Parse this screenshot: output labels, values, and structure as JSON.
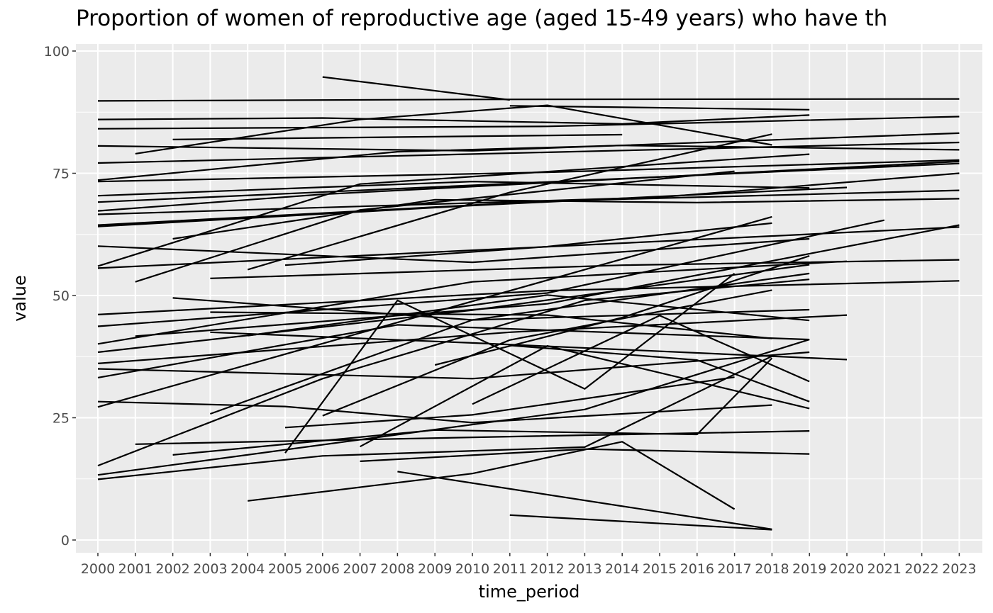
{
  "chart_data": {
    "type": "line",
    "title": "Proportion of women of reproductive age (aged 15-49 years) who have th",
    "xlabel": "time_period",
    "ylabel": "value",
    "xlim": [
      2000,
      2023
    ],
    "ylim": [
      0,
      100
    ],
    "x_ticks": [
      "2000",
      "2001",
      "2002",
      "2003",
      "2004",
      "2005",
      "2006",
      "2007",
      "2008",
      "2009",
      "2010",
      "2011",
      "2012",
      "2013",
      "2014",
      "2015",
      "2016",
      "2017",
      "2018",
      "2019",
      "2020",
      "2021",
      "2022",
      "2023"
    ],
    "y_ticks": [
      "0",
      "25",
      "50",
      "75",
      "100"
    ],
    "grid": true,
    "background": "#ebebeb",
    "line_color": "#000000",
    "series": [
      {
        "x": [
          2000,
          2010,
          2023
        ],
        "y": [
          89.8,
          90.1,
          90.2
        ]
      },
      {
        "x": [
          2000,
          2006,
          2014,
          2019
        ],
        "y": [
          86.0,
          86.3,
          85.1,
          86.9
        ]
      },
      {
        "x": [
          2006,
          2011
        ],
        "y": [
          94.7,
          90.0
        ]
      },
      {
        "x": [
          2011,
          2019
        ],
        "y": [
          88.8,
          88.0
        ]
      },
      {
        "x": [
          2000,
          2012,
          2023
        ],
        "y": [
          84.1,
          84.6,
          86.6
        ]
      },
      {
        "x": [
          2002,
          2014
        ],
        "y": [
          81.9,
          82.9
        ]
      },
      {
        "x": [
          2000,
          2010,
          2023
        ],
        "y": [
          80.6,
          79.6,
          83.2
        ]
      },
      {
        "x": [
          2001,
          2007,
          2012,
          2018
        ],
        "y": [
          79.0,
          86.0,
          88.9,
          80.8
        ]
      },
      {
        "x": [
          2000,
          2023
        ],
        "y": [
          77.1,
          81.3
        ]
      },
      {
        "x": [
          2000,
          2008,
          2014,
          2023
        ],
        "y": [
          73.6,
          79.4,
          80.7,
          79.8
        ]
      },
      {
        "x": [
          2000,
          2012,
          2023
        ],
        "y": [
          73.3,
          75.2,
          77.7
        ]
      },
      {
        "x": [
          2000,
          2010,
          2019
        ],
        "y": [
          70.4,
          73.3,
          72.0
        ]
      },
      {
        "x": [
          2000,
          2023
        ],
        "y": [
          69.1,
          77.0
        ]
      },
      {
        "x": [
          2000,
          2006,
          2023
        ],
        "y": [
          67.3,
          70.7,
          77.4
        ]
      },
      {
        "x": [
          2000,
          2015,
          2023
        ],
        "y": [
          66.6,
          70.1,
          75.0
        ]
      },
      {
        "x": [
          2000,
          2010,
          2020
        ],
        "y": [
          64.1,
          68.4,
          72.1
        ]
      },
      {
        "x": [
          2000,
          2012,
          2023
        ],
        "y": [
          64.4,
          69.3,
          71.5
        ]
      },
      {
        "x": [
          2002,
          2009,
          2016,
          2023
        ],
        "y": [
          61.6,
          69.6,
          69.0,
          69.8
        ]
      },
      {
        "x": [
          2000,
          2007,
          2019
        ],
        "y": [
          56.0,
          72.8,
          78.9
        ]
      },
      {
        "x": [
          2001,
          2007,
          2017
        ],
        "y": [
          52.8,
          67.5,
          75.4
        ]
      },
      {
        "x": [
          2000,
          2010,
          2019
        ],
        "y": [
          60.1,
          56.8,
          61.6
        ]
      },
      {
        "x": [
          2000,
          2023
        ],
        "y": [
          55.6,
          64.0
        ]
      },
      {
        "x": [
          2004,
          2011,
          2018
        ],
        "y": [
          55.3,
          71.1,
          83.0
        ]
      },
      {
        "x": [
          2005,
          2012,
          2018
        ],
        "y": [
          56.2,
          60.0,
          64.8
        ]
      },
      {
        "x": [
          2003,
          2014,
          2023
        ],
        "y": [
          53.5,
          56.2,
          57.3
        ]
      },
      {
        "x": [
          2002,
          2010,
          2019
        ],
        "y": [
          49.5,
          45.0,
          47.1
        ]
      },
      {
        "x": [
          2000,
          2012,
          2023
        ],
        "y": [
          46.1,
          51.0,
          53.0
        ]
      },
      {
        "x": [
          2000,
          2012,
          2021
        ],
        "y": [
          43.7,
          50.5,
          65.4
        ]
      },
      {
        "x": [
          2000,
          2010,
          2020
        ],
        "y": [
          40.1,
          52.8,
          57.0
        ]
      },
      {
        "x": [
          2000,
          2010,
          2019
        ],
        "y": [
          38.4,
          47.0,
          56.3
        ]
      },
      {
        "x": [
          2001,
          2012,
          2023
        ],
        "y": [
          41.7,
          48.3,
          64.4
        ]
      },
      {
        "x": [
          2003,
          2012,
          2018
        ],
        "y": [
          46.6,
          46.0,
          41.2
        ]
      },
      {
        "x": [
          2003,
          2010,
          2020
        ],
        "y": [
          42.5,
          40.3,
          36.9
        ]
      },
      {
        "x": [
          2004,
          2012,
          2019
        ],
        "y": [
          41.8,
          50.1,
          44.9
        ]
      },
      {
        "x": [
          2000,
          2011,
          2020
        ],
        "y": [
          36.1,
          42.5,
          46.0
        ]
      },
      {
        "x": [
          2000,
          2010,
          2019
        ],
        "y": [
          35.0,
          33.0,
          38.4
        ]
      },
      {
        "x": [
          2000,
          2008,
          2019
        ],
        "y": [
          33.2,
          44.0,
          41.0
        ]
      },
      {
        "x": [
          2000,
          2018
        ],
        "y": [
          27.2,
          66.1
        ]
      },
      {
        "x": [
          2003,
          2010,
          2019
        ],
        "y": [
          25.8,
          45.0,
          54.5
        ]
      },
      {
        "x": [
          2000,
          2005,
          2010,
          2018
        ],
        "y": [
          28.3,
          27.3,
          24.0,
          27.6
        ]
      },
      {
        "x": [
          2000,
          2006,
          2013,
          2019
        ],
        "y": [
          15.2,
          33.0,
          49.0,
          53.3
        ]
      },
      {
        "x": [
          2000,
          2013,
          2019
        ],
        "y": [
          13.3,
          26.7,
          41.0
        ]
      },
      {
        "x": [
          2000,
          2006,
          2013,
          2018
        ],
        "y": [
          12.4,
          17.2,
          19.0,
          37.6
        ]
      },
      {
        "x": [
          2001,
          2010,
          2019
        ],
        "y": [
          19.6,
          21.0,
          22.3
        ]
      },
      {
        "x": [
          2002,
          2009,
          2016,
          2018
        ],
        "y": [
          17.4,
          22.5,
          21.6,
          37.2
        ]
      },
      {
        "x": [
          2005,
          2008,
          2013,
          2017
        ],
        "y": [
          17.8,
          49.0,
          30.9,
          54.5
        ]
      },
      {
        "x": [
          2007,
          2013,
          2019
        ],
        "y": [
          16.1,
          18.6,
          17.6
        ]
      },
      {
        "x": [
          2004,
          2010,
          2014,
          2017
        ],
        "y": [
          8.0,
          13.6,
          20.1,
          6.3
        ]
      },
      {
        "x": [
          2008,
          2018
        ],
        "y": [
          14.0,
          2.2
        ]
      },
      {
        "x": [
          2011,
          2018
        ],
        "y": [
          5.1,
          2.1
        ]
      },
      {
        "x": [
          2005,
          2010,
          2017
        ],
        "y": [
          23.0,
          25.6,
          33.3
        ]
      },
      {
        "x": [
          2006,
          2011,
          2018
        ],
        "y": [
          25.4,
          40.9,
          51.1
        ]
      },
      {
        "x": [
          2007,
          2012,
          2019
        ],
        "y": [
          19.1,
          39.7,
          26.9
        ]
      },
      {
        "x": [
          2009,
          2014,
          2019
        ],
        "y": [
          35.8,
          45.5,
          58.1
        ]
      },
      {
        "x": [
          2010,
          2015,
          2019
        ],
        "y": [
          27.8,
          45.9,
          32.4
        ]
      },
      {
        "x": [
          2011,
          2016,
          2019
        ],
        "y": [
          39.8,
          36.8,
          28.3
        ]
      }
    ]
  }
}
